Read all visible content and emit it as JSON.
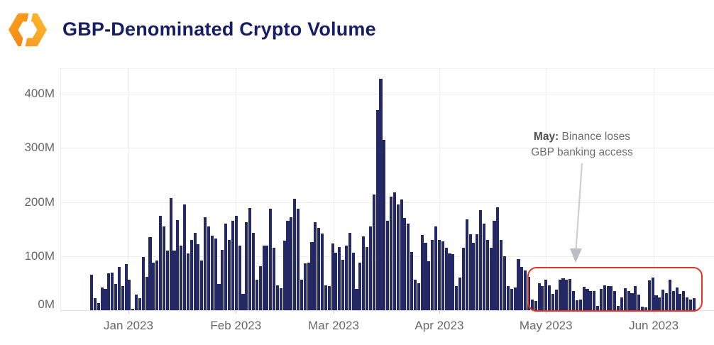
{
  "header": {
    "title": "GBP-Denominated Crypto Volume",
    "logo": "hexagon-brackets-logo",
    "logo_colors": {
      "left": [
        "#faa21b",
        "#ee7c1a"
      ],
      "right": [
        "#fcba2d",
        "#f6921e"
      ]
    }
  },
  "chart_data": {
    "type": "bar",
    "title": "GBP-Denominated Crypto Volume",
    "unit": "millions GBP per day",
    "grid": "on",
    "bar_color": "#242965",
    "axis_text_color": "#686868",
    "y_ticks": [
      "0M",
      "100M",
      "200M",
      "300M",
      "400M"
    ],
    "y_tick_values": [
      0,
      100,
      200,
      300,
      400
    ],
    "ylim": [
      0,
      450
    ],
    "x_ticks": [
      {
        "label": "Jan 2023",
        "index": 10.7
      },
      {
        "label": "Feb 2023",
        "index": 41.9
      },
      {
        "label": "Mar 2023",
        "index": 70.3
      },
      {
        "label": "Apr 2023",
        "index": 101.0
      },
      {
        "label": "May 2023",
        "index": 132.0
      },
      {
        "label": "Jun 2023",
        "index": 163.3
      }
    ],
    "values": [
      65,
      22,
      13,
      42,
      40,
      68,
      70,
      48,
      80,
      45,
      85,
      57,
      2,
      29,
      22,
      98,
      62,
      135,
      88,
      92,
      175,
      155,
      110,
      207,
      110,
      166,
      120,
      196,
      105,
      130,
      143,
      122,
      92,
      172,
      155,
      138,
      132,
      48,
      112,
      160,
      130,
      165,
      175,
      120,
      30,
      163,
      189,
      143,
      57,
      81,
      120,
      119,
      188,
      116,
      46,
      41,
      128,
      165,
      172,
      206,
      187,
      57,
      86,
      88,
      126,
      163,
      152,
      141,
      46,
      44,
      123,
      106,
      117,
      93,
      120,
      143,
      106,
      40,
      88,
      137,
      117,
      155,
      214,
      370,
      428,
      315,
      165,
      210,
      218,
      196,
      205,
      171,
      160,
      108,
      57,
      50,
      139,
      125,
      90,
      130,
      155,
      130,
      127,
      115,
      105,
      103,
      45,
      60,
      115,
      168,
      140,
      125,
      140,
      185,
      160,
      130,
      115,
      165,
      190,
      130,
      100,
      45,
      40,
      42,
      95,
      80,
      73,
      62,
      20,
      17,
      50,
      45,
      57,
      46,
      30,
      38,
      57,
      59,
      57,
      58,
      35,
      18,
      20,
      43,
      39,
      36,
      35,
      8,
      39,
      46,
      44,
      45,
      35,
      8,
      23,
      41,
      35,
      31,
      44,
      29,
      6,
      5,
      55,
      60,
      28,
      23,
      38,
      32,
      57,
      35,
      42,
      30,
      35,
      23,
      20,
      22
    ],
    "annotation": {
      "line1_bold": "May:",
      "line1_rest": " Binance loses",
      "line2": "GBP banking access",
      "full_text": "May: Binance loses GBP banking access"
    },
    "highlight_box": {
      "from_index": 126,
      "to_index": 175,
      "color": "#e93223"
    },
    "legend": "none"
  }
}
